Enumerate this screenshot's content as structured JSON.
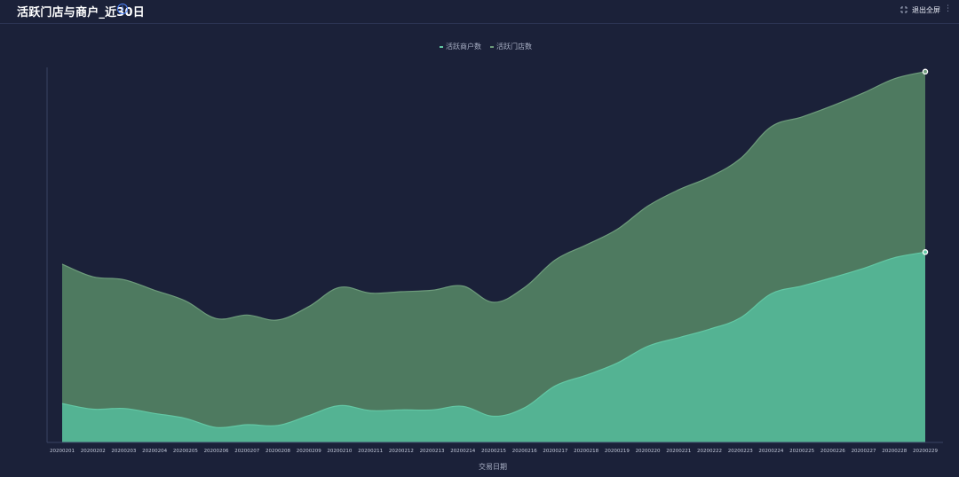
{
  "header": {
    "title": "活跃门店与商户_近30日",
    "info_icon": "info-circle-icon",
    "exit_fullscreen_label": "退出全屏",
    "fullscreen_icon": "fullscreen-exit-icon",
    "more_icon": "more-vertical-icon"
  },
  "colors": {
    "background": "#1b2139",
    "store_fill": "#4e7a60",
    "store_line": "#6e9c7c",
    "merchant_fill": "#54b393",
    "merchant_line": "#63c7a4",
    "accent": "#4f86ff"
  },
  "chart_data": {
    "type": "area",
    "stacked": false,
    "x": [
      "20200201",
      "20200202",
      "20200203",
      "20200204",
      "20200205",
      "20200206",
      "20200207",
      "20200208",
      "20200209",
      "20200210",
      "20200211",
      "20200212",
      "20200213",
      "20200214",
      "20200215",
      "20200216",
      "20200217",
      "20200218",
      "20200219",
      "20200220",
      "20200221",
      "20200222",
      "20200223",
      "20200224",
      "20200225",
      "20200226",
      "20200227",
      "20200228",
      "20200229"
    ],
    "series": [
      {
        "name": "活跃商户数",
        "values": [
          0.55,
          0.47,
          0.48,
          0.41,
          0.34,
          0.21,
          0.25,
          0.24,
          0.38,
          0.52,
          0.45,
          0.46,
          0.46,
          0.51,
          0.37,
          0.49,
          0.8,
          0.95,
          1.12,
          1.36,
          1.48,
          1.6,
          1.76,
          2.1,
          2.21,
          2.33,
          2.46,
          2.61,
          2.69
        ]
      },
      {
        "name": "活跃门店数",
        "values": [
          2.52,
          2.34,
          2.3,
          2.15,
          2.0,
          1.75,
          1.8,
          1.73,
          1.92,
          2.19,
          2.11,
          2.13,
          2.15,
          2.21,
          1.98,
          2.19,
          2.58,
          2.79,
          3.01,
          3.34,
          3.57,
          3.75,
          4.01,
          4.46,
          4.6,
          4.76,
          4.94,
          5.14,
          5.24
        ]
      }
    ],
    "ylim": [
      0,
      5.3
    ],
    "xlabel": "交易日期",
    "ylabel": "",
    "title": "",
    "grid": false,
    "legend_position": "top-center",
    "end_markers": true
  }
}
